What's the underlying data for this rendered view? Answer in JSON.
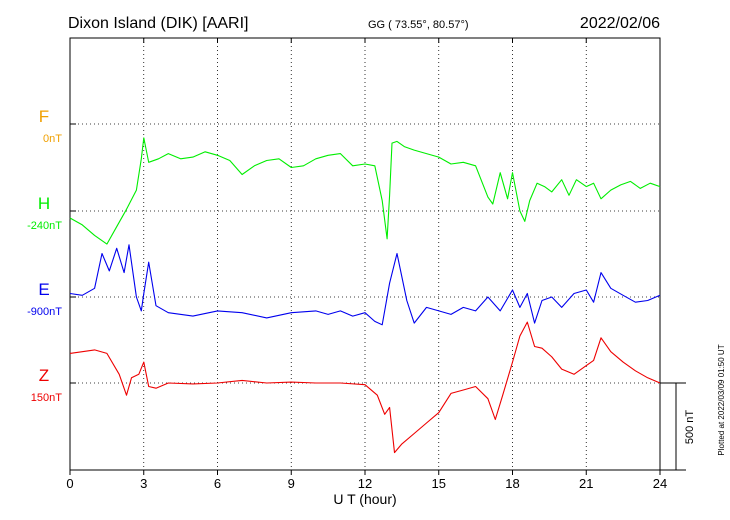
{
  "header": {
    "station": "Dixon Island (DIK)  [AARI]",
    "coords": "GG ( 73.55°,  80.57°)",
    "date": "2022/02/06"
  },
  "side_note": "Plotted at 2022/03/09 01:50 UT",
  "chart_data": {
    "type": "line",
    "xlabel": "U T (hour)",
    "xlim": [
      0,
      24
    ],
    "xticks": [
      "0",
      "3",
      "6",
      "9",
      "12",
      "15",
      "18",
      "21",
      "24"
    ],
    "scale_label": "500 nT",
    "scale_nT": 500,
    "series": [
      {
        "name": "F",
        "baseline_label": "0nT",
        "color": "#f0a000",
        "x": [],
        "values": []
      },
      {
        "name": "H",
        "baseline_label": "-240nT",
        "color": "#00ee00",
        "x": [
          0,
          0.5,
          1.0,
          1.5,
          1.9,
          2.3,
          2.7,
          2.9,
          3.0,
          3.2,
          3.6,
          4.0,
          4.5,
          5.0,
          5.5,
          6.0,
          6.5,
          7.0,
          7.5,
          8.0,
          8.5,
          9.0,
          9.5,
          10.0,
          10.5,
          11.0,
          11.5,
          12.0,
          12.4,
          12.7,
          12.9,
          13.0,
          13.1,
          13.3,
          13.6,
          14.0,
          14.5,
          15.0,
          15.5,
          16.0,
          16.5,
          17.0,
          17.2,
          17.5,
          17.8,
          18.0,
          18.3,
          18.5,
          18.7,
          19.0,
          19.3,
          19.6,
          20.0,
          20.3,
          20.6,
          21.0,
          21.3,
          21.6,
          22.0,
          22.4,
          22.8,
          23.2,
          23.6,
          24.0
        ],
        "values": [
          -280,
          -320,
          -380,
          -430,
          -330,
          -230,
          -120,
          60,
          180,
          40,
          60,
          90,
          60,
          70,
          100,
          80,
          50,
          -30,
          20,
          50,
          60,
          10,
          20,
          60,
          80,
          90,
          20,
          30,
          20,
          -180,
          -400,
          -150,
          150,
          160,
          130,
          110,
          90,
          70,
          30,
          40,
          20,
          -160,
          -200,
          -20,
          -170,
          -20,
          -240,
          -300,
          -180,
          -80,
          -100,
          -130,
          -60,
          -150,
          -60,
          -100,
          -80,
          -170,
          -120,
          -90,
          -70,
          -110,
          -80,
          -100
        ]
      },
      {
        "name": "E",
        "baseline_label": "-900nT",
        "color": "#0000ee",
        "x": [
          0,
          0.5,
          1.0,
          1.3,
          1.6,
          1.9,
          2.2,
          2.4,
          2.7,
          2.9,
          3.0,
          3.2,
          3.5,
          4.0,
          5.0,
          6.0,
          7.0,
          8.0,
          9.0,
          10.0,
          10.5,
          11.0,
          11.5,
          12.0,
          12.4,
          12.7,
          13.0,
          13.3,
          13.7,
          14.0,
          14.5,
          15.0,
          15.5,
          16.0,
          16.5,
          17.0,
          17.5,
          18.0,
          18.3,
          18.6,
          18.9,
          19.2,
          19.6,
          20.0,
          20.5,
          21.0,
          21.3,
          21.6,
          22.0,
          22.5,
          23.0,
          23.5,
          24.0
        ],
        "values": [
          -880,
          -890,
          -850,
          -650,
          -750,
          -620,
          -760,
          -600,
          -900,
          -980,
          -880,
          -700,
          -950,
          -990,
          -1010,
          -980,
          -990,
          -1020,
          -990,
          -980,
          -1000,
          -980,
          -1010,
          -990,
          -1040,
          -1060,
          -820,
          -650,
          -920,
          -1050,
          -960,
          -980,
          -1000,
          -960,
          -980,
          -900,
          -980,
          -860,
          -960,
          -880,
          -1050,
          -920,
          -900,
          -960,
          -880,
          -860,
          -930,
          -760,
          -850,
          -890,
          -930,
          -920,
          -890
        ]
      },
      {
        "name": "Z",
        "baseline_label": "150nT",
        "color": "#ee0000",
        "x": [
          0,
          0.5,
          1.0,
          1.5,
          2.0,
          2.3,
          2.5,
          2.8,
          3.0,
          3.2,
          3.5,
          4.0,
          5.0,
          6.0,
          7.0,
          8.0,
          9.0,
          10.0,
          11.0,
          12.0,
          12.5,
          12.8,
          13.0,
          13.2,
          13.5,
          14.0,
          14.5,
          15.0,
          15.5,
          16.0,
          16.5,
          17.0,
          17.3,
          17.6,
          18.0,
          18.3,
          18.6,
          18.9,
          19.2,
          19.6,
          20.0,
          20.5,
          21.0,
          21.3,
          21.6,
          22.0,
          22.5,
          23.0,
          23.5,
          24.0
        ],
        "values": [
          320,
          330,
          340,
          320,
          200,
          80,
          180,
          200,
          270,
          130,
          120,
          150,
          145,
          150,
          165,
          150,
          155,
          150,
          150,
          140,
          80,
          -30,
          10,
          -250,
          -200,
          -140,
          -80,
          -20,
          90,
          110,
          130,
          60,
          -60,
          80,
          270,
          420,
          500,
          360,
          350,
          300,
          230,
          200,
          250,
          280,
          410,
          330,
          270,
          220,
          180,
          150
        ]
      }
    ]
  }
}
